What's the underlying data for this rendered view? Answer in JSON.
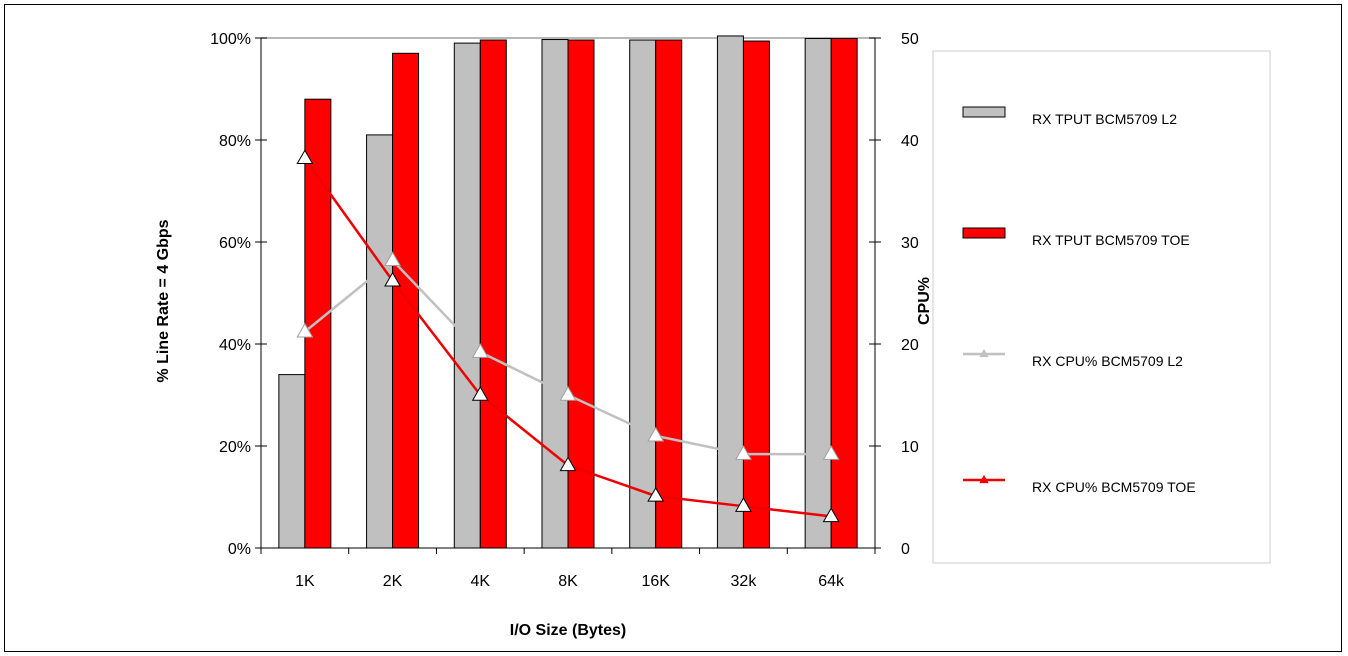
{
  "chart_data": {
    "type": "bar",
    "categories": [
      "1K",
      "2K",
      "4K",
      "8K",
      "16K",
      "32k",
      "64k"
    ],
    "xlabel": "I/O Size (Bytes)",
    "ylabel": "% Line Rate = 4 Gbps",
    "y2label": "CPU%",
    "ylim": [
      0,
      100
    ],
    "y2lim": [
      0,
      50
    ],
    "yticks": [
      "0%",
      "20%",
      "40%",
      "60%",
      "80%",
      "100%"
    ],
    "y2ticks": [
      "0",
      "10",
      "20",
      "30",
      "40",
      "50"
    ],
    "bar_series": [
      {
        "name": "RX TPUT BCM5709 L2",
        "color": "#c0c0c0",
        "values": [
          34,
          81,
          99,
          99.7,
          99.6,
          100.4,
          99.9
        ]
      },
      {
        "name": "RX TPUT BCM5709 TOE",
        "color": "#ff0000",
        "values": [
          88,
          97,
          99.6,
          99.6,
          99.6,
          99.4,
          99.9
        ]
      }
    ],
    "line_series": [
      {
        "name": "RX CPU% BCM5709 L2",
        "color": "#c0c0c0",
        "axis": "right",
        "values": [
          21.2,
          28.2,
          19.2,
          15,
          11,
          9.2,
          9.2
        ]
      },
      {
        "name": "RX CPU% BCM5709 TOE",
        "color": "#ee0000",
        "axis": "right",
        "values": [
          38.2,
          26.2,
          15,
          8.1,
          5.1,
          4.1,
          3.1
        ]
      }
    ],
    "grid": false,
    "legend_position": "right"
  }
}
